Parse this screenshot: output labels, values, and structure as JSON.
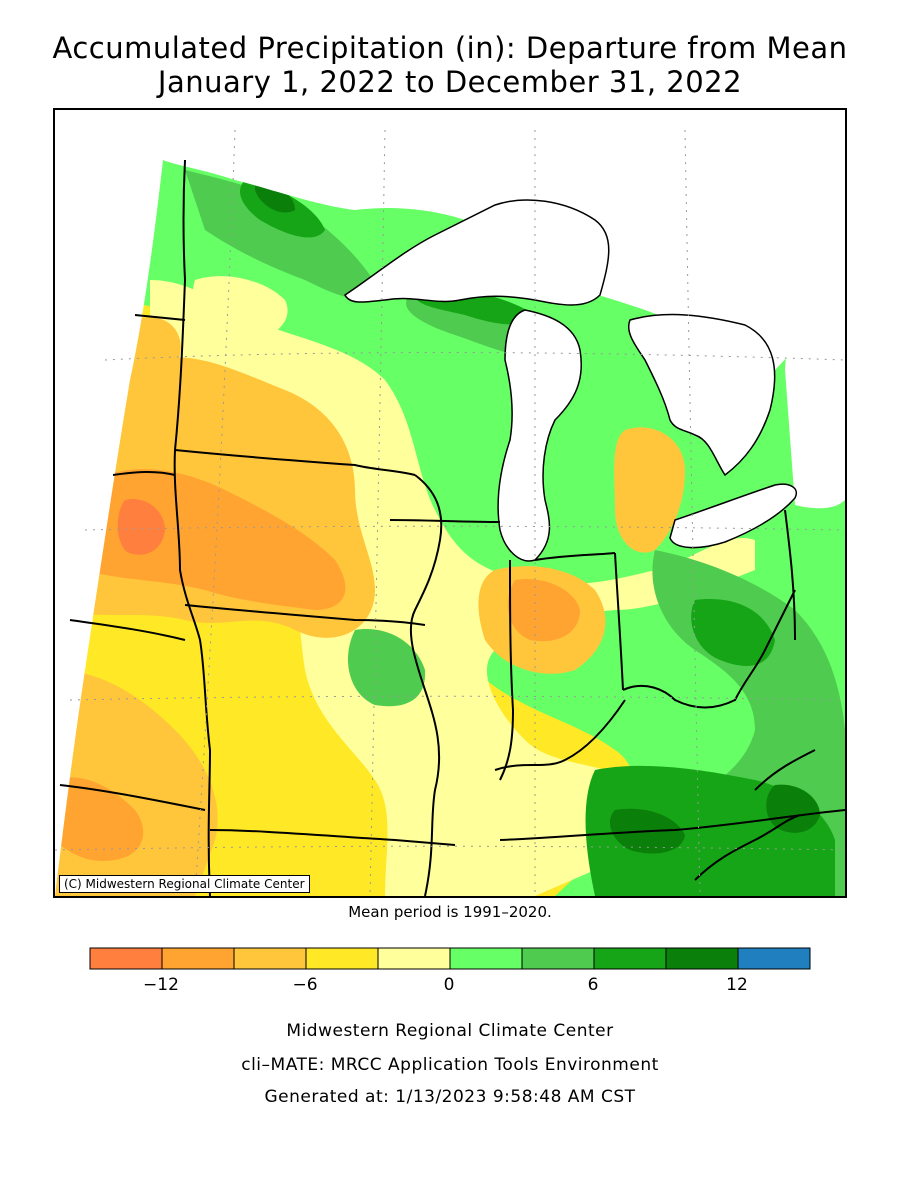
{
  "title_line1": "Accumulated Precipitation (in): Departure from Mean",
  "title_line2": "January 1, 2022 to December 31, 2022",
  "copyright": "(C) Midwestern Regional Climate Center",
  "mean_period": "Mean period is 1991–2020.",
  "legend": {
    "bins": [
      {
        "color": "#ff7f3f"
      },
      {
        "color": "#ffa431"
      },
      {
        "color": "#ffc63c"
      },
      {
        "color": "#ffe826"
      },
      {
        "color": "#ffff9c"
      },
      {
        "color": "#66ff66"
      },
      {
        "color": "#4fcc4f"
      },
      {
        "color": "#16a516"
      },
      {
        "color": "#0a7f0a"
      },
      {
        "color": "#1f7fbf"
      }
    ],
    "ticks": [
      "−12",
      "−6",
      "0",
      "6",
      "12"
    ]
  },
  "credits": [
    "Midwestern Regional Climate Center",
    "cli–MATE: MRCC Application Tools Environment",
    "Generated at: 1/13/2023 9:58:48 AM CST"
  ]
}
